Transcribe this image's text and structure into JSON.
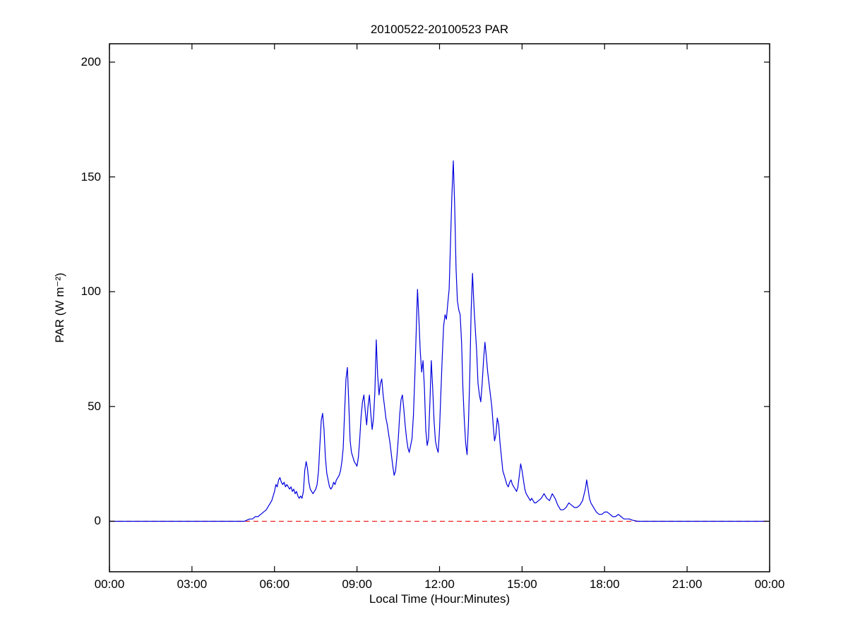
{
  "chart_data": {
    "type": "line",
    "title": "20100522-20100523 PAR",
    "xlabel": "Local Time (Hour:Minutes)",
    "ylabel": "PAR (W m⁻²)",
    "xlim": [
      0,
      24
    ],
    "ylim": [
      -22,
      208
    ],
    "x_ticks": [
      0,
      3,
      6,
      9,
      12,
      15,
      18,
      21,
      24
    ],
    "x_tick_labels": [
      "00:00",
      "03:00",
      "06:00",
      "09:00",
      "12:00",
      "15:00",
      "18:00",
      "21:00",
      "00:00"
    ],
    "y_ticks": [
      0,
      50,
      100,
      150,
      200
    ],
    "y_tick_labels": [
      "0",
      "50",
      "100",
      "150",
      "200"
    ],
    "grid": false,
    "legend": "none",
    "axis_color": "#000000",
    "series": [
      {
        "id": "zero-reference",
        "name": "zero reference",
        "color": "#ee2222",
        "style": "dashed",
        "points": [
          [
            0,
            0
          ],
          [
            24,
            0
          ]
        ]
      },
      {
        "id": "par-series",
        "name": "PAR",
        "color": "#0000dd",
        "style": "solid",
        "points": [
          [
            0,
            0
          ],
          [
            0.5,
            0
          ],
          [
            1,
            0
          ],
          [
            1.5,
            0
          ],
          [
            2,
            0
          ],
          [
            2.5,
            0
          ],
          [
            3,
            0
          ],
          [
            3.5,
            0
          ],
          [
            4,
            0
          ],
          [
            4.5,
            0
          ],
          [
            4.9,
            0
          ],
          [
            5.0,
            0.5
          ],
          [
            5.1,
            1
          ],
          [
            5.2,
            1
          ],
          [
            5.3,
            2
          ],
          [
            5.4,
            2
          ],
          [
            5.5,
            3
          ],
          [
            5.6,
            4
          ],
          [
            5.7,
            5
          ],
          [
            5.8,
            7
          ],
          [
            5.9,
            9
          ],
          [
            6.0,
            13
          ],
          [
            6.05,
            16
          ],
          [
            6.1,
            15
          ],
          [
            6.15,
            18
          ],
          [
            6.2,
            19
          ],
          [
            6.25,
            17
          ],
          [
            6.3,
            16
          ],
          [
            6.35,
            17
          ],
          [
            6.4,
            15
          ],
          [
            6.45,
            16
          ],
          [
            6.5,
            15
          ],
          [
            6.55,
            14
          ],
          [
            6.6,
            15
          ],
          [
            6.65,
            13
          ],
          [
            6.7,
            14
          ],
          [
            6.75,
            12
          ],
          [
            6.8,
            13
          ],
          [
            6.85,
            11
          ],
          [
            6.9,
            10
          ],
          [
            6.95,
            11
          ],
          [
            7.0,
            10
          ],
          [
            7.05,
            13
          ],
          [
            7.1,
            22
          ],
          [
            7.15,
            26
          ],
          [
            7.2,
            23
          ],
          [
            7.25,
            17
          ],
          [
            7.3,
            14
          ],
          [
            7.35,
            13
          ],
          [
            7.4,
            12
          ],
          [
            7.45,
            13
          ],
          [
            7.5,
            14
          ],
          [
            7.55,
            16
          ],
          [
            7.6,
            22
          ],
          [
            7.65,
            33
          ],
          [
            7.7,
            44
          ],
          [
            7.75,
            47
          ],
          [
            7.8,
            40
          ],
          [
            7.85,
            28
          ],
          [
            7.9,
            21
          ],
          [
            7.95,
            18
          ],
          [
            8.0,
            15
          ],
          [
            8.05,
            14
          ],
          [
            8.1,
            15
          ],
          [
            8.15,
            17
          ],
          [
            8.2,
            16
          ],
          [
            8.25,
            18
          ],
          [
            8.3,
            19
          ],
          [
            8.35,
            20
          ],
          [
            8.4,
            22
          ],
          [
            8.45,
            26
          ],
          [
            8.5,
            32
          ],
          [
            8.55,
            48
          ],
          [
            8.6,
            62
          ],
          [
            8.65,
            67
          ],
          [
            8.7,
            52
          ],
          [
            8.75,
            35
          ],
          [
            8.8,
            30
          ],
          [
            8.85,
            28
          ],
          [
            8.9,
            26
          ],
          [
            8.95,
            25
          ],
          [
            9.0,
            24
          ],
          [
            9.05,
            28
          ],
          [
            9.1,
            36
          ],
          [
            9.15,
            46
          ],
          [
            9.2,
            52
          ],
          [
            9.25,
            55
          ],
          [
            9.3,
            48
          ],
          [
            9.35,
            42
          ],
          [
            9.4,
            50
          ],
          [
            9.45,
            55
          ],
          [
            9.5,
            47
          ],
          [
            9.55,
            40
          ],
          [
            9.6,
            45
          ],
          [
            9.65,
            56
          ],
          [
            9.7,
            79
          ],
          [
            9.75,
            64
          ],
          [
            9.8,
            55
          ],
          [
            9.85,
            60
          ],
          [
            9.9,
            62
          ],
          [
            9.95,
            55
          ],
          [
            10.0,
            50
          ],
          [
            10.05,
            45
          ],
          [
            10.1,
            42
          ],
          [
            10.15,
            38
          ],
          [
            10.2,
            34
          ],
          [
            10.25,
            29
          ],
          [
            10.3,
            24
          ],
          [
            10.35,
            20
          ],
          [
            10.4,
            22
          ],
          [
            10.45,
            28
          ],
          [
            10.5,
            36
          ],
          [
            10.55,
            46
          ],
          [
            10.6,
            53
          ],
          [
            10.65,
            55
          ],
          [
            10.7,
            49
          ],
          [
            10.75,
            42
          ],
          [
            10.8,
            36
          ],
          [
            10.85,
            32
          ],
          [
            10.9,
            30
          ],
          [
            10.95,
            33
          ],
          [
            11.0,
            36
          ],
          [
            11.05,
            46
          ],
          [
            11.1,
            62
          ],
          [
            11.15,
            82
          ],
          [
            11.2,
            101
          ],
          [
            11.25,
            88
          ],
          [
            11.3,
            74
          ],
          [
            11.35,
            65
          ],
          [
            11.4,
            70
          ],
          [
            11.45,
            58
          ],
          [
            11.5,
            40
          ],
          [
            11.55,
            33
          ],
          [
            11.6,
            36
          ],
          [
            11.65,
            52
          ],
          [
            11.7,
            70
          ],
          [
            11.75,
            58
          ],
          [
            11.8,
            44
          ],
          [
            11.85,
            35
          ],
          [
            11.9,
            32
          ],
          [
            11.95,
            30
          ],
          [
            12.0,
            40
          ],
          [
            12.05,
            56
          ],
          [
            12.1,
            72
          ],
          [
            12.15,
            85
          ],
          [
            12.2,
            90
          ],
          [
            12.25,
            88
          ],
          [
            12.3,
            95
          ],
          [
            12.35,
            101
          ],
          [
            12.4,
            122
          ],
          [
            12.45,
            142
          ],
          [
            12.5,
            157
          ],
          [
            12.55,
            138
          ],
          [
            12.6,
            110
          ],
          [
            12.65,
            96
          ],
          [
            12.7,
            92
          ],
          [
            12.75,
            90
          ],
          [
            12.8,
            78
          ],
          [
            12.85,
            58
          ],
          [
            12.9,
            44
          ],
          [
            12.95,
            34
          ],
          [
            13.0,
            29
          ],
          [
            13.05,
            42
          ],
          [
            13.1,
            64
          ],
          [
            13.15,
            92
          ],
          [
            13.2,
            108
          ],
          [
            13.25,
            94
          ],
          [
            13.3,
            84
          ],
          [
            13.35,
            74
          ],
          [
            13.4,
            60
          ],
          [
            13.45,
            55
          ],
          [
            13.5,
            52
          ],
          [
            13.55,
            60
          ],
          [
            13.6,
            70
          ],
          [
            13.65,
            78
          ],
          [
            13.7,
            72
          ],
          [
            13.75,
            65
          ],
          [
            13.8,
            60
          ],
          [
            13.85,
            55
          ],
          [
            13.9,
            50
          ],
          [
            13.95,
            42
          ],
          [
            14.0,
            35
          ],
          [
            14.05,
            38
          ],
          [
            14.1,
            45
          ],
          [
            14.15,
            42
          ],
          [
            14.2,
            34
          ],
          [
            14.25,
            28
          ],
          [
            14.3,
            22
          ],
          [
            14.35,
            20
          ],
          [
            14.4,
            18
          ],
          [
            14.45,
            16
          ],
          [
            14.5,
            15
          ],
          [
            14.55,
            17
          ],
          [
            14.6,
            18
          ],
          [
            14.65,
            16
          ],
          [
            14.7,
            15
          ],
          [
            14.75,
            14
          ],
          [
            14.8,
            13
          ],
          [
            14.85,
            15
          ],
          [
            14.9,
            20
          ],
          [
            14.95,
            25
          ],
          [
            15.0,
            22
          ],
          [
            15.05,
            18
          ],
          [
            15.1,
            14
          ],
          [
            15.15,
            12
          ],
          [
            15.2,
            11
          ],
          [
            15.25,
            10
          ],
          [
            15.3,
            9
          ],
          [
            15.35,
            10
          ],
          [
            15.4,
            9
          ],
          [
            15.45,
            8
          ],
          [
            15.5,
            8
          ],
          [
            15.6,
            9
          ],
          [
            15.7,
            10
          ],
          [
            15.8,
            12
          ],
          [
            15.9,
            10
          ],
          [
            16.0,
            9
          ],
          [
            16.1,
            12
          ],
          [
            16.2,
            10
          ],
          [
            16.3,
            7
          ],
          [
            16.4,
            5
          ],
          [
            16.5,
            5
          ],
          [
            16.6,
            6
          ],
          [
            16.7,
            8
          ],
          [
            16.8,
            7
          ],
          [
            16.9,
            6
          ],
          [
            17.0,
            6
          ],
          [
            17.1,
            7
          ],
          [
            17.2,
            9
          ],
          [
            17.3,
            14
          ],
          [
            17.35,
            18
          ],
          [
            17.4,
            14
          ],
          [
            17.45,
            10
          ],
          [
            17.5,
            8
          ],
          [
            17.6,
            6
          ],
          [
            17.7,
            4
          ],
          [
            17.8,
            3
          ],
          [
            17.9,
            3
          ],
          [
            18.0,
            4
          ],
          [
            18.1,
            4
          ],
          [
            18.2,
            3
          ],
          [
            18.3,
            2
          ],
          [
            18.4,
            2
          ],
          [
            18.5,
            3
          ],
          [
            18.6,
            2
          ],
          [
            18.7,
            1
          ],
          [
            18.8,
            1
          ],
          [
            18.9,
            1
          ],
          [
            19.0,
            0.5
          ],
          [
            19.2,
            0
          ],
          [
            19.5,
            0
          ],
          [
            20,
            0
          ],
          [
            20.5,
            0
          ],
          [
            21,
            0
          ],
          [
            21.5,
            0
          ],
          [
            22,
            0
          ],
          [
            22.5,
            0
          ],
          [
            23,
            0
          ],
          [
            23.5,
            0
          ],
          [
            23.95,
            0
          ]
        ]
      }
    ]
  }
}
